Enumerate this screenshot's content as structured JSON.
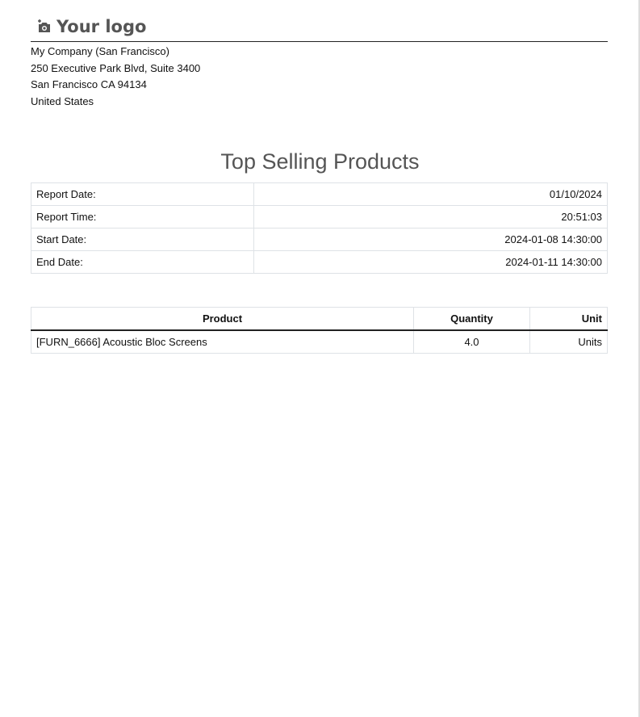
{
  "header": {
    "logo_text": "Your logo",
    "logo_icon": "camera-plus-icon"
  },
  "company": {
    "lines": [
      "My Company (San Francisco)",
      "250 Executive Park Blvd, Suite 3400",
      "San Francisco CA 94134",
      "United States"
    ]
  },
  "report": {
    "title": "Top Selling Products",
    "info": [
      {
        "label": "Report Date:",
        "value": "01/10/2024"
      },
      {
        "label": "Report Time:",
        "value": "20:51:03"
      },
      {
        "label": "Start Date:",
        "value": "2024-01-08 14:30:00"
      },
      {
        "label": "End Date:",
        "value": "2024-01-11 14:30:00"
      }
    ],
    "columns": [
      "Product",
      "Quantity",
      "Unit"
    ],
    "rows": [
      {
        "product": "[FURN_6666] Acoustic Bloc Screens",
        "quantity": "4.0",
        "unit": "Units"
      }
    ]
  }
}
